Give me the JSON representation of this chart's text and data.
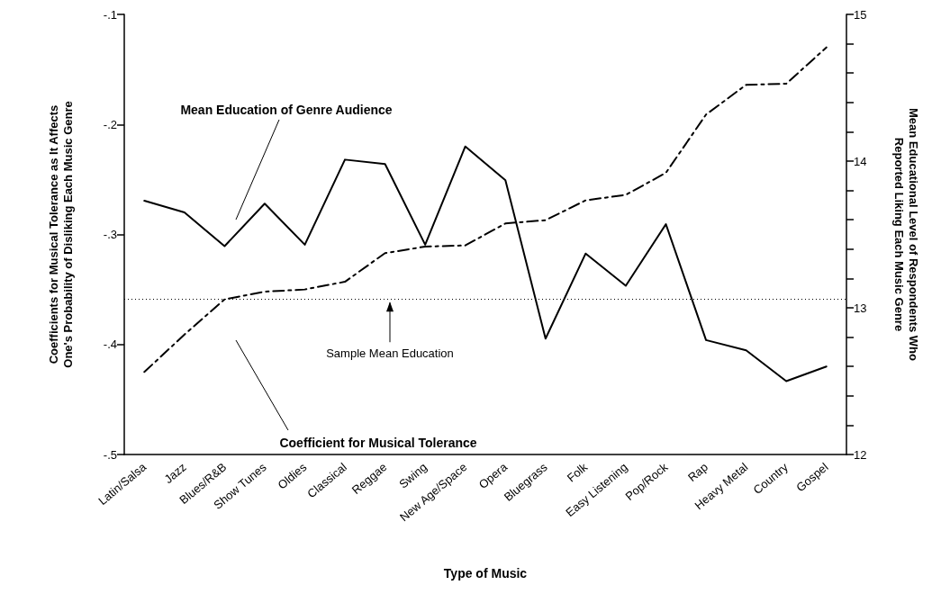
{
  "chart_data": {
    "type": "line",
    "xlabel": "Type of Music",
    "ylabel": "Coefficients for Musical Tolerance as It Affects\nOne's Probability of Disliking Each Music Genre",
    "y2label": "Mean Educational Level of Respondents Who\nReported Liking Each Music Genre",
    "categories": [
      "Latin/Salsa",
      "Jazz",
      "Blues/R&B",
      "Show Tunes",
      "Oldies",
      "Classical",
      "Reggae",
      "Swing",
      "New Age/Space",
      "Opera",
      "Bluegrass",
      "Folk",
      "Easy Listening",
      "Pop/Rock",
      "Rap",
      "Heavy Metal",
      "Country",
      "Gospel"
    ],
    "series": [
      {
        "name": "Mean Education of Genre Audience",
        "color": "#000000",
        "axis": "y2",
        "line_style": "solid",
        "values": [
          13.73,
          13.65,
          13.42,
          13.71,
          13.43,
          14.01,
          13.98,
          13.43,
          14.1,
          13.87,
          12.79,
          13.37,
          13.15,
          13.57,
          12.78,
          12.71,
          12.5,
          12.6
        ]
      },
      {
        "name": "Coefficient for Musical Tolerance",
        "color": "#000000",
        "line_style": "dashed",
        "values": [
          -0.425,
          -0.391,
          -0.359,
          -0.352,
          -0.35,
          -0.343,
          -0.317,
          -0.311,
          -0.31,
          -0.29,
          -0.287,
          -0.269,
          -0.264,
          -0.244,
          -0.191,
          -0.164,
          -0.163,
          -0.13
        ]
      }
    ],
    "ylim": [
      -0.5,
      -0.1
    ],
    "yticks": [
      {
        "value": -0.5,
        "label": "-.5"
      },
      {
        "value": -0.4,
        "label": "-.4"
      },
      {
        "value": -0.3,
        "label": "-.3"
      },
      {
        "value": -0.2,
        "label": "-.2"
      },
      {
        "value": -0.1,
        "label": "-.1"
      }
    ],
    "y2lim": [
      12,
      15
    ],
    "y2ticks": [
      12,
      {
        "value": 12.2,
        "label": null
      },
      {
        "value": 12.4,
        "label": null
      },
      {
        "value": 12.6,
        "label": null
      },
      {
        "value": 12.8,
        "label": null
      },
      13,
      {
        "value": 13.2,
        "label": null
      },
      {
        "value": 13.4,
        "label": null
      },
      {
        "value": 13.6,
        "label": null
      },
      {
        "value": 13.8,
        "label": null
      },
      14,
      {
        "value": 14.2,
        "label": null
      },
      {
        "value": 14.4,
        "label": null
      },
      {
        "value": 14.6,
        "label": null
      },
      {
        "value": 14.8,
        "label": null
      },
      15
    ],
    "ref_lines": [
      {
        "axis": "y2",
        "value": 13.06,
        "label": "Sample Mean Education",
        "line_style": "dotted",
        "color": "#000000"
      }
    ],
    "grid": false,
    "marker": "none"
  }
}
